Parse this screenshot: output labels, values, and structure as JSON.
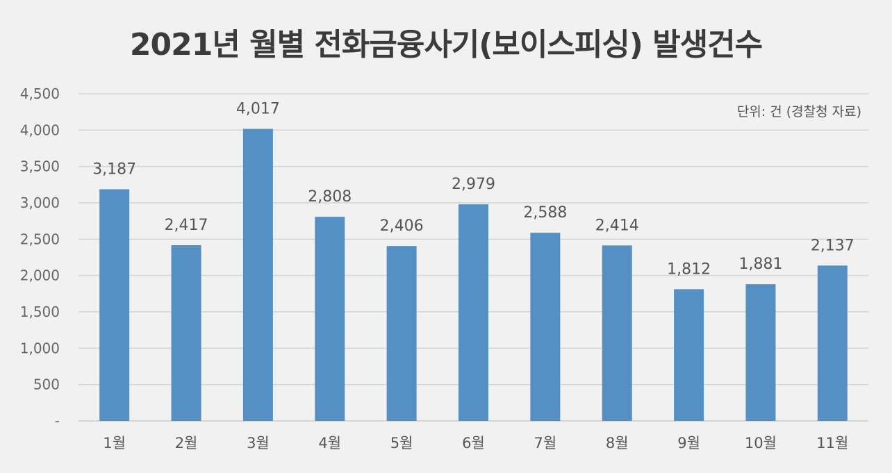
{
  "chart_data": {
    "type": "bar",
    "title": "2021년 월별 전화금융사기(보이스피싱) 발생건수",
    "unit_note": "단위: 건 (경찰청 자료)",
    "categories": [
      "1월",
      "2월",
      "3월",
      "4월",
      "5월",
      "6월",
      "7월",
      "8월",
      "9월",
      "10월",
      "11월"
    ],
    "values": [
      3187,
      2417,
      4017,
      2808,
      2406,
      2979,
      2588,
      2414,
      1812,
      1881,
      2137
    ],
    "data_labels": [
      "3,187",
      "2,417",
      "4,017",
      "2,808",
      "2,406",
      "2,979",
      "2,588",
      "2,414",
      "1,812",
      "1,881",
      "2,137"
    ],
    "yticks": [
      0,
      500,
      1000,
      1500,
      2000,
      2500,
      3000,
      3500,
      4000,
      4500
    ],
    "ytick_labels": [
      "-",
      "500",
      "1,000",
      "1,500",
      "2,000",
      "2,500",
      "3,000",
      "3,500",
      "4,000",
      "4,500"
    ],
    "ylim": [
      0,
      4500
    ],
    "grid": true,
    "legend": "none",
    "bar_color": "#5590c5",
    "grid_color": "#d4d4d4"
  }
}
